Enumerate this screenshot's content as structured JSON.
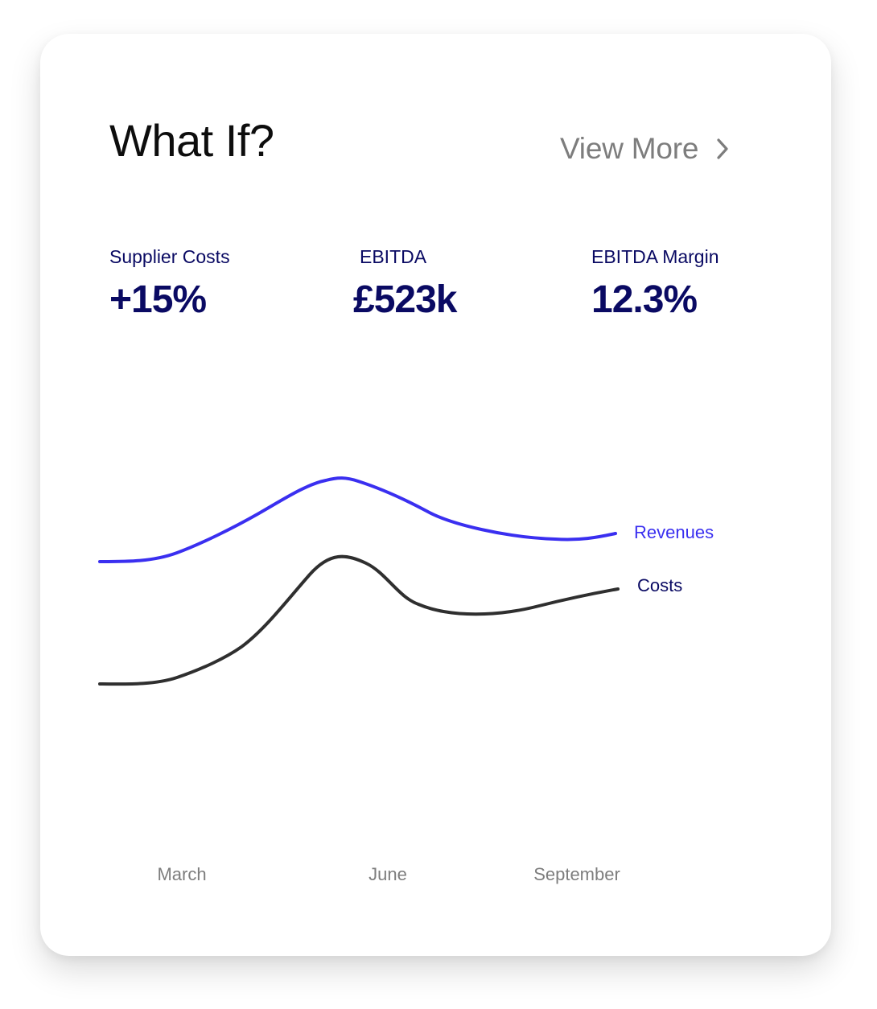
{
  "card": {
    "title": "What If?",
    "view_more_label": "View More",
    "view_more_icon": "chevron-right-icon"
  },
  "metrics": [
    {
      "label": "Supplier Costs",
      "value": "+15%"
    },
    {
      "label": "EBITDA",
      "value": "£523k"
    },
    {
      "label": "EBITDA Margin",
      "value": "12.3%"
    }
  ],
  "colors": {
    "revenues": "#3a2ff0",
    "costs": "#2f2f2f",
    "metric_text": "#0a0a63",
    "muted_text": "#7d7d7d"
  },
  "chart_data": {
    "type": "line",
    "x_ticks": [
      "March",
      "June",
      "September"
    ],
    "series": [
      {
        "name": "Revenues",
        "shape": "rises to a peak near June, then declines and levels off"
      },
      {
        "name": "Costs",
        "shape": "flat, rises sharply to a peak near June, dips, then rises slightly"
      }
    ],
    "grid": false,
    "yaxis_visible": false
  }
}
